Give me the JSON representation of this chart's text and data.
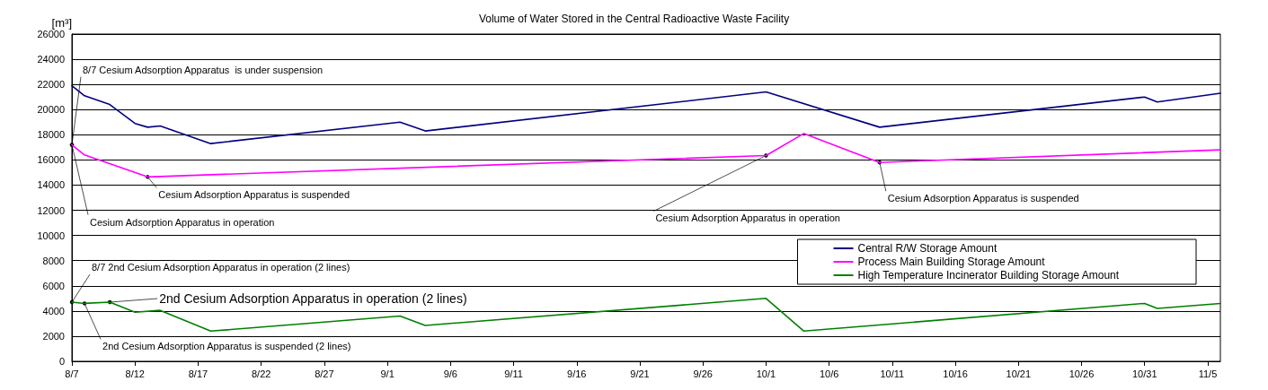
{
  "chart_data": {
    "type": "line",
    "title": "Volume of Water Stored in the Central Radioactive Waste Facility",
    "ylabel": "[m³]",
    "xlim": [
      "--08-07",
      "--11-06"
    ],
    "xticks": [
      {
        "value": "--08-07",
        "label": "8/7"
      },
      {
        "value": "--08-12",
        "label": "8/12"
      },
      {
        "value": "--08-17",
        "label": "8/17"
      },
      {
        "value": "--08-22",
        "label": "8/22"
      },
      {
        "value": "--08-27",
        "label": "8/27"
      },
      {
        "value": "--09-01",
        "label": "9/1"
      },
      {
        "value": "--09-06",
        "label": "9/6"
      },
      {
        "value": "--09-11",
        "label": "9/11"
      },
      {
        "value": "--09-16",
        "label": "9/16"
      },
      {
        "value": "--09-21",
        "label": "9/21"
      },
      {
        "value": "--09-26",
        "label": "9/26"
      },
      {
        "value": "--10-01",
        "label": "10/1"
      },
      {
        "value": "--10-06",
        "label": "10/6"
      },
      {
        "value": "--10-11",
        "label": "10/11"
      },
      {
        "value": "--10-16",
        "label": "10/16"
      },
      {
        "value": "--10-21",
        "label": "10/21"
      },
      {
        "value": "--10-26",
        "label": "10/26"
      },
      {
        "value": "--10-31",
        "label": "10/31"
      },
      {
        "value": "--11-05",
        "label": "11/5"
      }
    ],
    "ylim": [
      0,
      26000
    ],
    "yticks": [
      0,
      2000,
      4000,
      6000,
      8000,
      10000,
      12000,
      14000,
      16000,
      18000,
      20000,
      22000,
      24000,
      26000
    ],
    "grid": "y",
    "legend": "bottom right",
    "marker": "none",
    "line_style": "solid",
    "series": [
      {
        "name": "Central R/W Storage Amount",
        "color": "#000080",
        "x": [
          "--08-07",
          "--08-08",
          "--08-10",
          "--08-12",
          "--08-13",
          "--08-14",
          "--08-18",
          "--09-02",
          "--09-04",
          "--10-01",
          "--10-10",
          "--10-31",
          "--11-01",
          "--11-06"
        ],
        "values": [
          21900,
          21100,
          20400,
          18900,
          18600,
          18700,
          17300,
          19000,
          18300,
          21400,
          18600,
          21000,
          20600,
          21300
        ]
      },
      {
        "name": "Process Main Building Storage Amount",
        "color": "#ff00ff",
        "x": [
          "--08-07",
          "--08-08",
          "--08-13",
          "--10-01",
          "--10-04",
          "--10-10",
          "--11-06"
        ],
        "values": [
          17200,
          16400,
          14650,
          16350,
          18100,
          15800,
          16800
        ]
      },
      {
        "name": "High Temperature Incinerator Building Storage Amount",
        "color": "#008000",
        "x": [
          "--08-07",
          "--08-08",
          "--08-10",
          "--08-12",
          "--08-14",
          "--08-18",
          "--09-02",
          "--09-04",
          "--10-01",
          "--10-04",
          "--10-31",
          "--11-01",
          "--11-06"
        ],
        "values": [
          4700,
          4600,
          4700,
          3900,
          4050,
          2400,
          3600,
          2850,
          5000,
          2400,
          4600,
          4200,
          4600
        ]
      }
    ],
    "annotations": [
      {
        "text": "8/7 Cesium Adsorption Apparatus  is under suspension",
        "x": "--08-07",
        "y": 17200
      },
      {
        "text": "Cesium Adsorption Apparatus in operation",
        "x": "--08-07",
        "y": 17200
      },
      {
        "text": "Cesium Adsorption Apparatus is suspended",
        "x": "--08-13",
        "y": 14650
      },
      {
        "text": "Cesium Adsorption Apparatus in operation",
        "x": "--10-01",
        "y": 16350
      },
      {
        "text": "Cesium Adsorption Apparatus is suspended",
        "x": "--10-10",
        "y": 15800
      },
      {
        "text": "8/7 2nd Cesium Adsorption Apparatus in operation (2 lines)",
        "x": "--08-07",
        "y": 4700
      },
      {
        "text": "2nd Cesium Adsorption Apparatus in operation (2 lines)",
        "x": "--08-10",
        "y": 4700
      },
      {
        "text": "2nd Cesium Adsorption Apparatus is suspended (2 lines)",
        "x": "--08-08",
        "y": 4600
      }
    ]
  }
}
